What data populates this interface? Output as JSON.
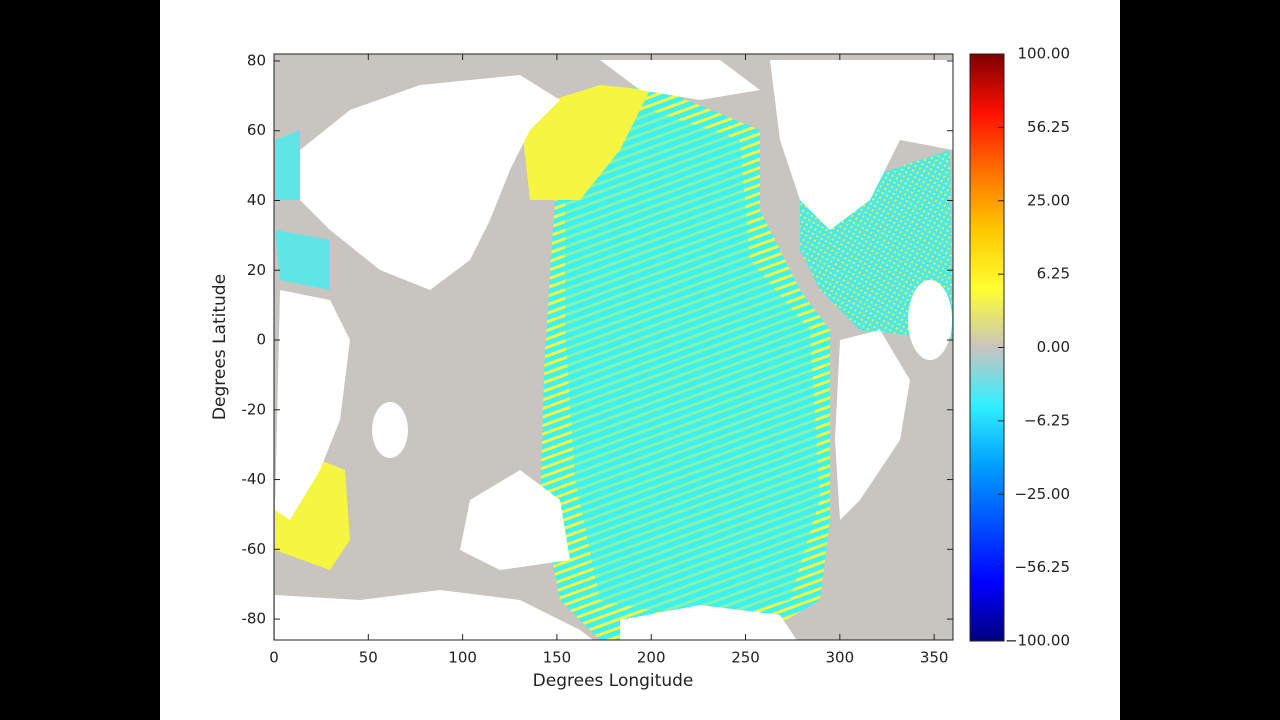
{
  "chart_data": {
    "type": "heatmap",
    "xlabel": "Degrees Longitude",
    "ylabel": "Degrees Latitude",
    "xlim": [
      0,
      360
    ],
    "ylim": [
      -86,
      82
    ],
    "xticks": [
      0,
      50,
      100,
      150,
      200,
      250,
      300,
      350
    ],
    "yticks": [
      -80,
      -60,
      -40,
      -20,
      0,
      20,
      40,
      60,
      80
    ],
    "colorbar": {
      "scale": "signed-sqrt",
      "clim": [
        -100,
        100
      ],
      "colors": [
        "#00007f",
        "#0000ff",
        "#0050ff",
        "#00a0ff",
        "#30f0ff",
        "#c8c4bf",
        "#ffff30",
        "#ffc800",
        "#ff7000",
        "#ff1000",
        "#7f0000"
      ],
      "ticks": [
        {
          "value": 100,
          "label": "100.00"
        },
        {
          "value": 56.25,
          "label": "56.25"
        },
        {
          "value": 25,
          "label": "25.00"
        },
        {
          "value": 6.25,
          "label": "6.25"
        },
        {
          "value": 0,
          "label": "0.00"
        },
        {
          "value": -6.25,
          "label": "−6.25"
        },
        {
          "value": -25,
          "label": "−25.00"
        },
        {
          "value": -56.25,
          "label": "−56.25"
        },
        {
          "value": -100,
          "label": "−100.00"
        }
      ]
    }
  }
}
